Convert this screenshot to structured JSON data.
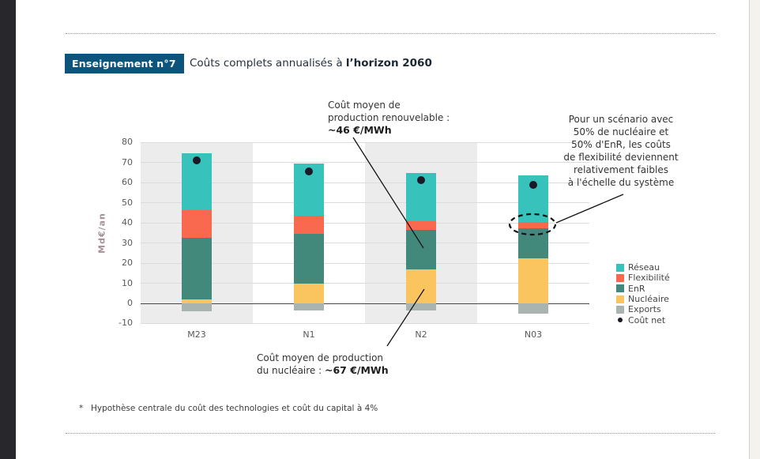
{
  "page": {
    "badge": "Enseignement n°7",
    "title_prefix": "Coûts complets annualisés à ",
    "title_bold": "l’horizon 2060",
    "footnote_marker": "*",
    "footnote_text": "Hypothèse centrale du coût des technologies et coût du capital à 4%"
  },
  "annotations": {
    "renewable": {
      "text": "Coût moyen de\nproduction renouvelable :",
      "value": "~46 €/MWh"
    },
    "nuclear": {
      "text": "Coût moyen de production\ndu nucléaire : ",
      "value": "~67 €/MWh"
    },
    "flexibility": {
      "text": "Pour un scénario avec\n50% de nucléaire et\n50% d'EnR, les coûts\nde flexibilité deviennent\nrelativement faibles\nà l'échelle du système"
    }
  },
  "chart_data": {
    "type": "bar",
    "stacked": true,
    "title": "Coûts complets annualisés à l’horizon 2060",
    "xlabel": "",
    "ylabel": "Md€/an",
    "ylim": [
      -10,
      80
    ],
    "yticks": [
      80,
      70,
      60,
      50,
      40,
      30,
      20,
      10,
      0,
      -10
    ],
    "grid": true,
    "legend_position": "right",
    "band_colors": [
      "#ececec",
      "#ffffff",
      "#ececec",
      "#ffffff"
    ],
    "categories": [
      "M23",
      "N1",
      "N2",
      "N03"
    ],
    "series": [
      {
        "name": "Exports",
        "color": "#a9b4b1",
        "values": [
          -4,
          -3.5,
          -3.5,
          -5
        ]
      },
      {
        "name": "Nucléaire",
        "color": "#fac55e",
        "values": [
          2,
          10,
          17,
          22.5
        ]
      },
      {
        "name": "EnR",
        "color": "#43897b",
        "values": [
          30.5,
          24.5,
          19.5,
          15
        ]
      },
      {
        "name": "Flexibilité",
        "color": "#f8694f",
        "values": [
          14,
          9,
          4.5,
          3
        ]
      },
      {
        "name": "Réseau",
        "color": "#38c2bc",
        "values": [
          28,
          26,
          24,
          23
        ]
      }
    ],
    "point_series": {
      "name": "Coût net",
      "color": "#1a1a28",
      "values": [
        71,
        65.5,
        61.5,
        59
      ]
    },
    "legend": [
      {
        "label": "Réseau",
        "color": "#38c2bc",
        "marker": "square"
      },
      {
        "label": "Flexibilité",
        "color": "#f8694f",
        "marker": "square"
      },
      {
        "label": "EnR",
        "color": "#43897b",
        "marker": "square"
      },
      {
        "label": "Nucléaire",
        "color": "#fac55e",
        "marker": "square"
      },
      {
        "label": "Exports",
        "color": "#a9b4b1",
        "marker": "square"
      },
      {
        "label": "Coût net",
        "color": "#1a1a28",
        "marker": "dot"
      }
    ]
  }
}
